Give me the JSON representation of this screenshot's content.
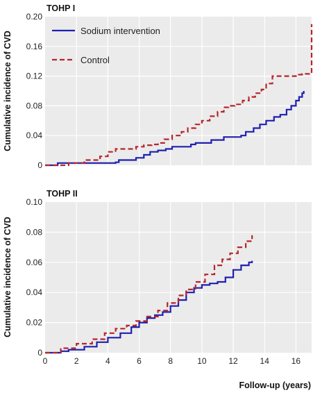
{
  "colors": {
    "plot_background": "#ebebeb",
    "grid": "#ffffff",
    "sodium": "#1f1fb0",
    "control": "#b4262b"
  },
  "xlabel": "Follow-up (years)",
  "ylabel": "Cumulative incidence of CVD",
  "legend": {
    "sodium_label": "Sodium intervention",
    "control_label": "Control"
  },
  "chart_data": [
    {
      "type": "line",
      "title": "TOHP I",
      "xlabel": "",
      "ylabel": "Cumulative incidence of CVD",
      "xlim": [
        0,
        17
      ],
      "ylim": [
        0,
        0.2
      ],
      "y_ticks": [
        "0",
        "0.04",
        "0.08",
        "0.12",
        "0.16",
        "0.20"
      ],
      "x_ticks": [],
      "grid": true,
      "legend_position": "top-left",
      "series": [
        {
          "name": "Sodium intervention",
          "style": "solid",
          "x": [
            0,
            0.8,
            1.5,
            2.5,
            3.5,
            4.5,
            4.7,
            5.6,
            5.8,
            6.3,
            6.7,
            7.2,
            7.7,
            8.1,
            8.5,
            9.3,
            9.6,
            10.3,
            10.6,
            11.1,
            11.4,
            12.5,
            12.8,
            13.3,
            13.7,
            14.1,
            14.6,
            15.0,
            15.4,
            15.7,
            16.0,
            16.2,
            16.4,
            16.5
          ],
          "y": [
            0,
            0.003,
            0.003,
            0.003,
            0.003,
            0.004,
            0.007,
            0.007,
            0.01,
            0.014,
            0.018,
            0.02,
            0.022,
            0.025,
            0.025,
            0.028,
            0.03,
            0.03,
            0.034,
            0.034,
            0.038,
            0.04,
            0.045,
            0.05,
            0.055,
            0.06,
            0.065,
            0.068,
            0.075,
            0.08,
            0.087,
            0.092,
            0.097,
            0.1
          ]
        },
        {
          "name": "Control",
          "style": "dashed",
          "x": [
            0,
            1.5,
            2.5,
            3.5,
            4.0,
            4.5,
            5.2,
            5.8,
            6.3,
            6.8,
            7.2,
            7.6,
            8.1,
            8.7,
            9.1,
            9.6,
            10.0,
            10.5,
            11.0,
            11.4,
            11.7,
            12.1,
            12.6,
            13.0,
            13.4,
            13.8,
            14.1,
            14.5,
            15.1,
            15.6,
            16.0,
            16.4,
            16.9,
            17.0
          ],
          "y": [
            0,
            0.003,
            0.007,
            0.012,
            0.018,
            0.022,
            0.022,
            0.025,
            0.027,
            0.028,
            0.03,
            0.035,
            0.04,
            0.045,
            0.05,
            0.055,
            0.06,
            0.066,
            0.072,
            0.078,
            0.08,
            0.082,
            0.087,
            0.092,
            0.097,
            0.102,
            0.11,
            0.12,
            0.12,
            0.12,
            0.122,
            0.123,
            0.123,
            0.19
          ]
        }
      ]
    },
    {
      "type": "line",
      "title": "TOHP II",
      "xlabel": "Follow-up (years)",
      "ylabel": "Cumulative incidence of CVD",
      "xlim": [
        0,
        17
      ],
      "ylim": [
        0,
        0.1
      ],
      "y_ticks": [
        "0",
        "0.02",
        "0.04",
        "0.06",
        "0.08",
        "0.10"
      ],
      "x_ticks": [
        "0",
        "2",
        "4",
        "6",
        "8",
        "10",
        "12",
        "14",
        "16"
      ],
      "grid": true,
      "series": [
        {
          "name": "Sodium intervention",
          "style": "solid",
          "x": [
            0,
            1.0,
            1.5,
            2.5,
            3.3,
            4.0,
            4.8,
            5.5,
            6.0,
            6.5,
            7.0,
            7.5,
            8.0,
            8.5,
            9.0,
            9.5,
            10.0,
            10.5,
            11.0,
            11.5,
            12.0,
            12.5,
            13.0,
            13.2
          ],
          "y": [
            0,
            0.001,
            0.002,
            0.004,
            0.007,
            0.01,
            0.013,
            0.017,
            0.02,
            0.023,
            0.025,
            0.027,
            0.031,
            0.035,
            0.04,
            0.043,
            0.045,
            0.046,
            0.047,
            0.05,
            0.055,
            0.058,
            0.06,
            0.061
          ]
        },
        {
          "name": "Control",
          "style": "dashed",
          "x": [
            0,
            1.0,
            2.0,
            3.0,
            3.8,
            4.5,
            5.2,
            5.8,
            6.5,
            7.2,
            7.8,
            8.5,
            9.0,
            9.6,
            10.2,
            10.8,
            11.3,
            11.8,
            12.3,
            12.8,
            13.2
          ],
          "y": [
            0,
            0.003,
            0.006,
            0.009,
            0.013,
            0.016,
            0.018,
            0.021,
            0.024,
            0.028,
            0.033,
            0.038,
            0.042,
            0.047,
            0.052,
            0.058,
            0.062,
            0.066,
            0.07,
            0.074,
            0.078
          ]
        }
      ]
    }
  ]
}
